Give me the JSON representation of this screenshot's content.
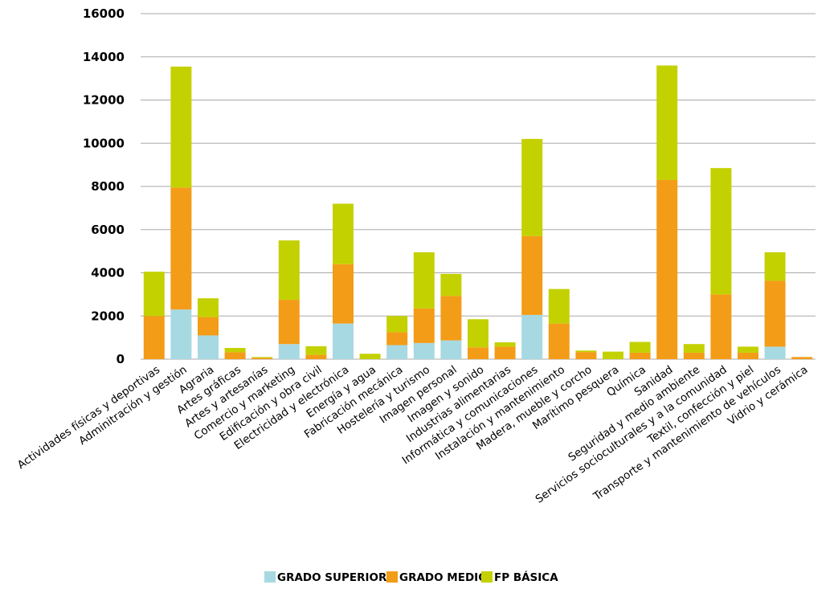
{
  "colors": {
    "grado_superior": "#a7d9e2",
    "grado_medio": "#f39c17",
    "fp_basica": "#c4d100",
    "grid": "#aaaaaa"
  },
  "legend": [
    {
      "name": "GRADO SUPERIOR",
      "color_key": "grado_superior"
    },
    {
      "name": "GRADO MEDIO",
      "color_key": "grado_medio"
    },
    {
      "name": "FP BÁSICA",
      "color_key": "fp_basica"
    }
  ],
  "chart_data": {
    "type": "bar",
    "stacked": true,
    "title": "",
    "xlabel": "",
    "ylabel": "",
    "ylim": [
      0,
      16000
    ],
    "yticks": [
      0,
      2000,
      4000,
      6000,
      8000,
      10000,
      12000,
      14000,
      16000
    ],
    "grid": "horizontal",
    "legend_position": "bottom",
    "categories": [
      "Actividades físicas y deportivas",
      "Adminitración y gestión",
      "Agraria",
      "Artes gráficas",
      "Artes y artesanías",
      "Comercio y marketing",
      "Edificación y obra civil",
      "Electricidad y electrónica",
      "Energía y agua",
      "Fabricación mecánica",
      "Hostelería y turismo",
      "Imagen personal",
      "Imagen y sonido",
      "Industrias alimentarias",
      "Informática y comunicaciones",
      "Instalación y mantenimiento",
      "Madera, mueble y corcho",
      "Marítimo pesquera",
      "Química",
      "Sanidad",
      "Seguridad y medio ambiente",
      "Servicios socioculturales y a la comunidad",
      "Textil, confección y piel",
      "Transporte y mantenimiento de vehículos",
      "Vidrio y cerámica"
    ],
    "series": [
      {
        "name": "GRADO SUPERIOR",
        "values": [
          0,
          2300,
          1100,
          0,
          0,
          700,
          0,
          1650,
          0,
          650,
          750,
          870,
          0,
          0,
          2050,
          0,
          0,
          0,
          0,
          0,
          0,
          0,
          0,
          580,
          0
        ]
      },
      {
        "name": "GRADO MEDIO",
        "values": [
          2000,
          5650,
          850,
          320,
          60,
          2050,
          200,
          2750,
          0,
          600,
          1600,
          2060,
          550,
          580,
          3650,
          1650,
          330,
          0,
          300,
          8300,
          300,
          3000,
          300,
          3050,
          100
        ]
      },
      {
        "name": "FP BÁSICA",
        "values": [
          2050,
          5600,
          870,
          200,
          40,
          2750,
          400,
          2800,
          250,
          750,
          2600,
          1020,
          1300,
          200,
          4500,
          1600,
          70,
          350,
          500,
          5300,
          400,
          5850,
          280,
          1320,
          0
        ]
      }
    ]
  }
}
